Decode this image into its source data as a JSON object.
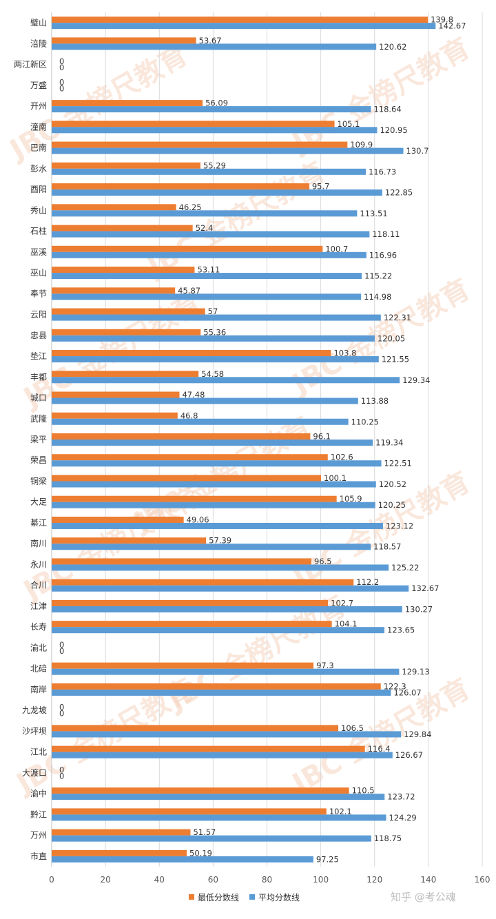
{
  "chart_data": {
    "type": "bar",
    "orientation": "horizontal",
    "categories": [
      "璧山",
      "涪陵",
      "两江新区",
      "万盛",
      "开州",
      "潼南",
      "巴南",
      "彭水",
      "酉阳",
      "秀山",
      "石柱",
      "巫溪",
      "巫山",
      "奉节",
      "云阳",
      "忠县",
      "垫江",
      "丰都",
      "城口",
      "武隆",
      "梁平",
      "荣昌",
      "铜梁",
      "大足",
      "綦江",
      "南川",
      "永川",
      "合川",
      "江津",
      "长寿",
      "渝北",
      "北碚",
      "南岸",
      "九龙坡",
      "沙坪坝",
      "江北",
      "大渡口",
      "渝中",
      "黔江",
      "万州",
      "市直"
    ],
    "series": [
      {
        "name": "最低分数线",
        "color": "#ED7D31",
        "values": [
          139.8,
          53.67,
          0,
          0,
          56.09,
          105.1,
          109.9,
          55.29,
          95.7,
          46.25,
          52.4,
          100.7,
          53.11,
          45.87,
          57,
          55.36,
          103.8,
          54.58,
          47.48,
          46.8,
          96.1,
          102.6,
          100.1,
          105.9,
          49.06,
          57.39,
          96.5,
          112.2,
          102.7,
          104.1,
          0,
          97.3,
          122.3,
          0,
          106.5,
          116.4,
          0,
          110.5,
          102.1,
          51.57,
          50.19
        ],
        "labels": [
          "139.8",
          "53.67",
          "0",
          "0",
          "56.09",
          "105.1",
          "109.9",
          "55.29",
          "95.7",
          "46.25",
          "52.4",
          "100.7",
          "53.11",
          "45.87",
          "57",
          "55.36",
          "103.8",
          "54.58",
          "47.48",
          "46.8",
          "96.1",
          "102.6",
          "100.1",
          "105.9",
          "49.06",
          "57.39",
          "96.5",
          "112.2",
          "102.7",
          "104.1",
          "0",
          "97.3",
          "122.3",
          "0",
          "106.5",
          "116.4",
          "0",
          "110.5",
          "102.1",
          "51.57",
          "50.19"
        ]
      },
      {
        "name": "平均分数线",
        "color": "#5B9BD5",
        "values": [
          142.67,
          120.62,
          0,
          0,
          118.64,
          120.95,
          130.7,
          116.73,
          122.85,
          113.51,
          118.11,
          116.96,
          115.22,
          114.98,
          122.31,
          120.05,
          121.55,
          129.34,
          113.88,
          110.25,
          119.34,
          122.51,
          120.52,
          120.25,
          123.12,
          118.57,
          125.22,
          132.67,
          130.27,
          123.65,
          0,
          129.13,
          126.07,
          0,
          129.84,
          126.67,
          0,
          123.72,
          124.29,
          118.75,
          97.25
        ],
        "labels": [
          "142.67",
          "120.62",
          "0",
          "0",
          "118.64",
          "120.95",
          "130.7",
          "116.73",
          "122.85",
          "113.51",
          "118.11",
          "116.96",
          "115.22",
          "114.98",
          "122.31",
          "120.05",
          "121.55",
          "129.34",
          "113.88",
          "110.25",
          "119.34",
          "122.51",
          "120.52",
          "120.25",
          "123.12",
          "118.57",
          "125.22",
          "132.67",
          "130.27",
          "123.65",
          "0",
          "129.13",
          "126.07",
          "0",
          "129.84",
          "126.67",
          "0",
          "123.72",
          "124.29",
          "118.75",
          "97.25"
        ]
      }
    ],
    "xlim": [
      0,
      160
    ],
    "xticks": [
      "0",
      "20",
      "40",
      "60",
      "80",
      "100",
      "120",
      "140",
      "160"
    ],
    "grid": true,
    "legend_position": "bottom"
  },
  "watermark": {
    "text": "JBC 金榜尺教育",
    "color": "#F3C9B1"
  },
  "footer": {
    "text": "知乎 @考公魂"
  }
}
